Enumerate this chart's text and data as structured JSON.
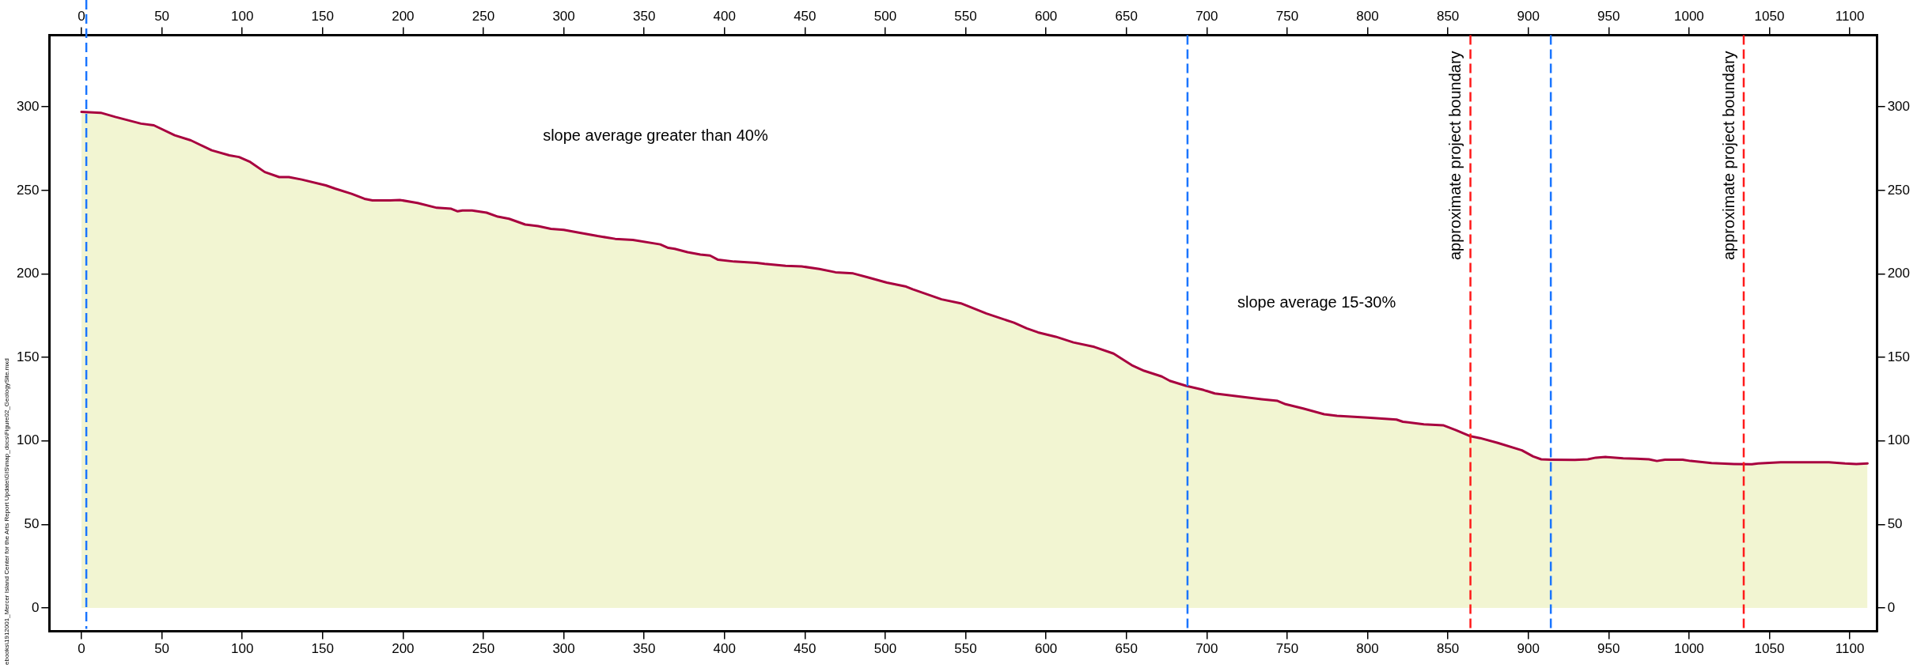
{
  "chart_data": {
    "type": "area",
    "x": [
      0,
      12,
      21,
      37,
      45,
      58,
      68,
      81,
      92,
      98,
      105,
      114,
      123,
      129,
      137,
      152,
      158,
      168,
      176,
      181,
      192,
      198,
      209,
      221,
      230,
      234,
      237,
      243,
      252,
      259,
      266,
      276,
      284,
      292,
      300,
      308,
      321,
      332,
      343,
      360,
      365,
      369,
      377,
      385,
      391,
      396,
      406,
      420,
      425,
      438,
      448,
      459,
      469,
      480,
      489,
      501,
      513,
      517,
      535,
      547,
      563,
      580,
      588,
      595,
      606,
      617,
      630,
      642,
      654,
      661,
      672,
      677,
      687,
      698,
      705,
      717,
      734,
      744,
      749,
      760,
      773,
      781,
      800,
      818,
      822,
      835,
      847,
      855,
      864,
      870,
      881,
      896,
      903,
      908,
      914,
      929,
      937,
      942,
      948,
      959,
      967,
      975,
      980,
      985,
      996,
      1001,
      1014,
      1028,
      1039,
      1043,
      1057,
      1087,
      1097,
      1104,
      1111
    ],
    "series": [
      {
        "color": "#a8003f",
        "values": [
          297,
          296.5,
          294,
          290,
          289,
          283,
          280,
          274,
          271,
          270,
          267,
          261,
          258,
          258,
          256.5,
          253,
          251,
          248,
          245,
          244,
          244,
          244.3,
          242.5,
          239.6,
          239,
          237.5,
          238,
          238,
          236.7,
          234.3,
          233,
          229.6,
          228.6,
          227,
          226.4,
          225,
          222.7,
          221,
          220.4,
          217.7,
          215.6,
          215,
          213,
          211.6,
          211,
          208.5,
          207.4,
          206.6,
          206,
          204.8,
          204.5,
          203,
          201,
          200.3,
          198,
          194.8,
          192.4,
          190.8,
          184.8,
          182.4,
          176.3,
          170.8,
          167.4,
          165,
          162.4,
          159,
          156.3,
          152.3,
          145,
          142,
          138.6,
          136,
          133,
          130.5,
          128.4,
          127,
          125,
          124,
          122,
          119.4,
          116,
          115,
          114,
          112.8,
          111.5,
          110,
          109.4,
          106.5,
          102.8,
          101.7,
          98.8,
          94.4,
          90.7,
          89,
          88.8,
          88.6,
          89,
          90,
          90.4,
          89.6,
          89.4,
          89,
          88,
          88.8,
          88.8,
          88,
          86.7,
          86.2,
          86,
          86.5,
          87.2,
          87.2,
          86.5,
          86.2,
          86.5
        ]
      }
    ],
    "xlim": [
      -20,
      1117
    ],
    "xticks": [
      0,
      50,
      100,
      150,
      200,
      250,
      300,
      350,
      400,
      450,
      500,
      550,
      600,
      650,
      700,
      750,
      800,
      850,
      900,
      950,
      1000,
      1050,
      1100
    ],
    "x2lim": [
      -20,
      1117
    ],
    "x2ticks": [
      0,
      50,
      100,
      150,
      200,
      250,
      300,
      350,
      400,
      450,
      500,
      550,
      600,
      650,
      700,
      750,
      800,
      850,
      900,
      950,
      1000,
      1050,
      1100
    ],
    "ylim": [
      -14,
      343
    ],
    "yticks": [
      0,
      50,
      100,
      150,
      200,
      250,
      300
    ],
    "y2lim": [
      -14,
      343
    ],
    "y2ticks": [
      0,
      50,
      100,
      150,
      200,
      250,
      300
    ],
    "ref_lines": [
      {
        "axis": "x",
        "value": 3,
        "color": "#1a75ff",
        "line_style": "dashed"
      },
      {
        "axis": "x",
        "value": 688,
        "color": "#1a75ff",
        "line_style": "dashed"
      },
      {
        "axis": "x",
        "value": 914,
        "color": "#1a75ff",
        "line_style": "dashed"
      },
      {
        "axis": "x",
        "value": 864,
        "label": "approximate project boundary",
        "color": "#ff1a1a",
        "line_style": "dashed"
      },
      {
        "axis": "x",
        "value": 1034,
        "label": "approximate project boundary",
        "color": "#ff1a1a",
        "line_style": "dashed"
      }
    ],
    "annotations": [
      "slope average greater than 40%",
      "slope average 15-30%",
      "ebooks\\1912001_Mercer Island Center for the Arts Report Update\\GIS\\map_docs\\Figure02_GeologySite.mxd"
    ],
    "grid": false,
    "legend": false,
    "marker": "none",
    "line_style": "solid"
  }
}
